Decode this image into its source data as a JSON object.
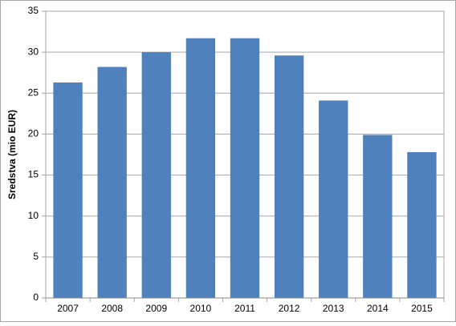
{
  "chart_data": {
    "type": "bar",
    "y_label": "Sredstva (mio EUR)",
    "categories": [
      "2007",
      "2008",
      "2009",
      "2010",
      "2011",
      "2012",
      "2013",
      "2014",
      "2015"
    ],
    "values": [
      26.3,
      28.2,
      30.0,
      31.7,
      31.7,
      29.6,
      24.1,
      19.9,
      17.8
    ],
    "color": "#4f81bd",
    "ylim": [
      0,
      35
    ],
    "yticks": [
      0,
      5,
      10,
      15,
      20,
      25,
      30,
      35
    ],
    "grid": true
  }
}
